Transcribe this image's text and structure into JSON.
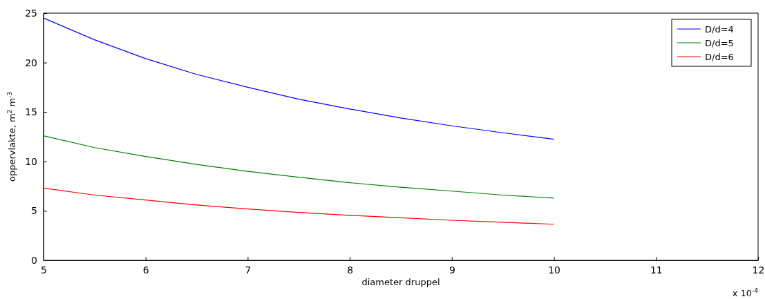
{
  "chart_data": {
    "type": "line",
    "xlabel": "diameter druppel",
    "ylabel": "oppervlakte, m$^{2}$ m$^{-3}$",
    "annotations": [
      "x 10$^{-4}$"
    ],
    "x": [
      5,
      5.5,
      6,
      6.5,
      7,
      7.5,
      8,
      8.5,
      9,
      9.5,
      10
    ],
    "series": [
      {
        "name": "D/d=4",
        "color": "#0000ff",
        "values": [
          24.5,
          22.3,
          20.4,
          18.8,
          17.5,
          16.3,
          15.3,
          14.4,
          13.6,
          12.9,
          12.25
        ]
      },
      {
        "name": "D/d=5",
        "color": "#008000",
        "values": [
          12.6,
          11.4,
          10.5,
          9.7,
          9.0,
          8.4,
          7.85,
          7.4,
          7.0,
          6.6,
          6.3
        ]
      },
      {
        "name": "D/d=6",
        "color": "#ff0000",
        "values": [
          7.3,
          6.6,
          6.1,
          5.6,
          5.2,
          4.85,
          4.55,
          4.3,
          4.05,
          3.85,
          3.65
        ]
      }
    ],
    "xlim": [
      5,
      12
    ],
    "xticks": [
      5,
      6,
      7,
      8,
      9,
      10,
      11,
      12
    ],
    "ylim": [
      0,
      25
    ],
    "yticks": [
      0,
      5,
      10,
      15,
      20,
      25
    ],
    "legend": "top right",
    "grid": false,
    "marker": "none",
    "line_style": "solid"
  }
}
